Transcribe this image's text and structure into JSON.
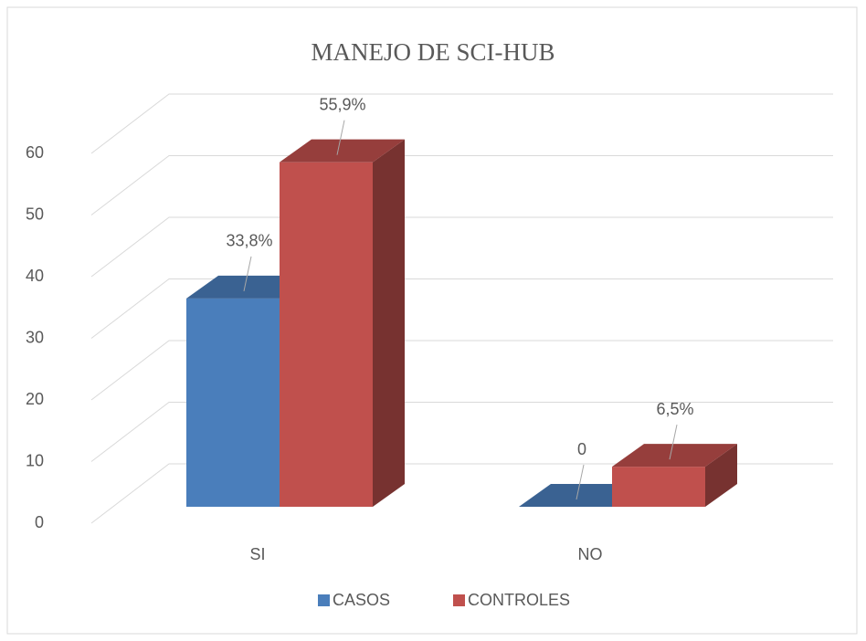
{
  "chart_data": {
    "type": "bar3d",
    "title": "MANEJO DE SCI-HUB",
    "categories": [
      "SI",
      "NO"
    ],
    "series": [
      {
        "name": "CASOS",
        "color": "#4a7ebb",
        "values": [
          33.8,
          0
        ],
        "value_labels": [
          "33,8%",
          "0"
        ]
      },
      {
        "name": "CONTROLES",
        "color": "#c0504d",
        "values": [
          55.9,
          6.5
        ],
        "value_labels": [
          "55,9%",
          "6,5%"
        ]
      }
    ],
    "ylim": [
      0,
      70
    ],
    "yticks": [
      0,
      10,
      20,
      30,
      40,
      50,
      60
    ],
    "grid": true,
    "legend": "bottom"
  }
}
